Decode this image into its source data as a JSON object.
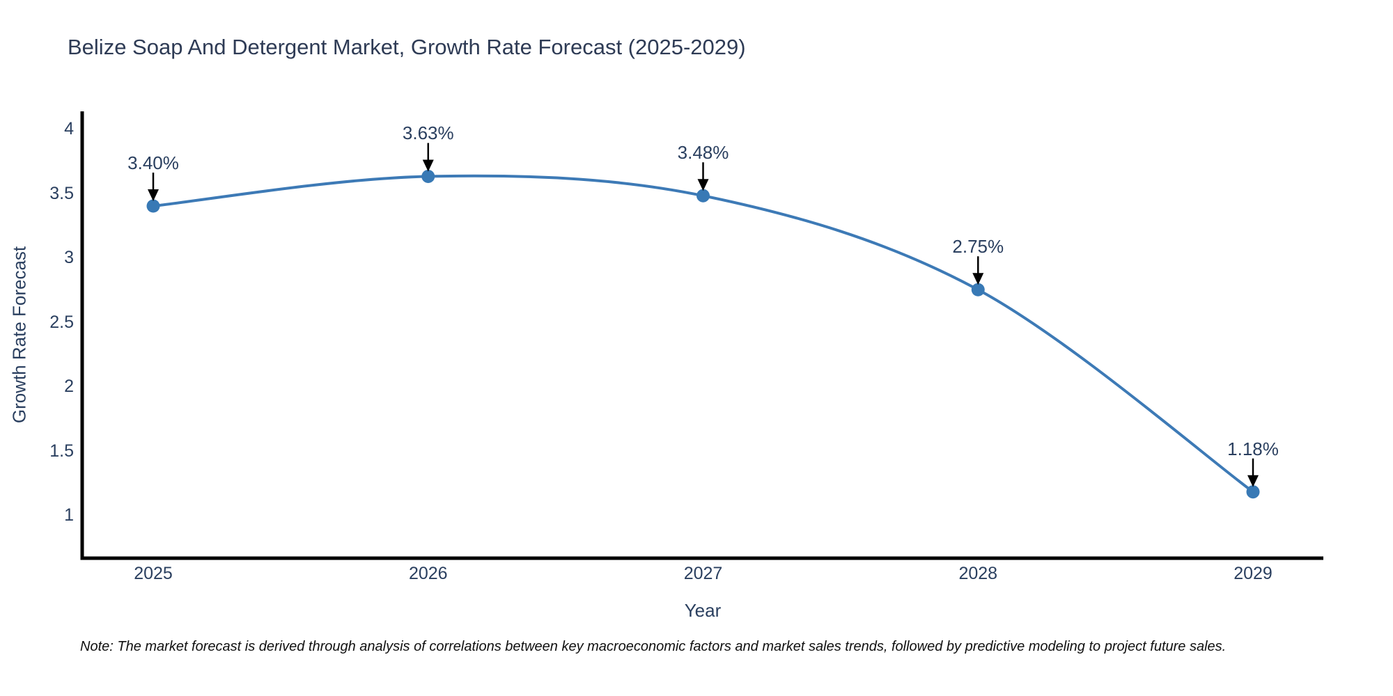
{
  "chart_data": {
    "type": "line",
    "title": "Belize Soap And Detergent Market, Growth Rate Forecast (2025-2029)",
    "xlabel": "Year",
    "ylabel": "Growth Rate Forecast",
    "categories": [
      "2025",
      "2026",
      "2027",
      "2028",
      "2029"
    ],
    "series": [
      {
        "name": "Growth Rate Forecast",
        "values": [
          3.4,
          3.63,
          3.48,
          2.75,
          1.18
        ]
      }
    ],
    "point_labels": [
      "3.40%",
      "3.63%",
      "3.48%",
      "2.75%",
      "1.18%"
    ],
    "y_ticks": [
      1,
      1.5,
      2,
      2.5,
      3,
      3.5,
      4
    ],
    "ylim": [
      0.66,
      4.14
    ],
    "grid": false,
    "legend_position": "none",
    "line_shape": "spline",
    "marker": "circle",
    "annotation_arrows": true,
    "colors": {
      "line": "#3d7ab6",
      "marker": "#3879b5",
      "axis": "#000000",
      "text": "#2a3f5f",
      "arrow": "#000000",
      "background": "#ffffff"
    }
  },
  "note": {
    "text": "Note: The market forecast is derived through analysis of correlations between key macroeconomic factors and market sales trends, followed by predictive modeling to project future sales."
  }
}
